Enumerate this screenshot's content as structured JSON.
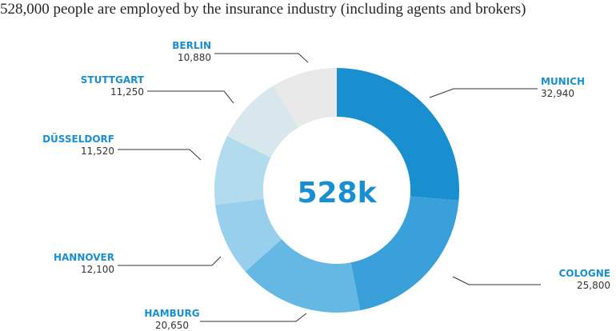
{
  "title": "528,000 people are employed by the insurance industry (including agents and brokers)",
  "center_label": "528k",
  "chart_data": {
    "type": "pie",
    "title": "528,000 people are employed by the insurance industry (including agents and brokers)",
    "categories": [
      "MUNICH",
      "COLOGNE",
      "HAMBURG",
      "HANNOVER",
      "DÜSSELDORF",
      "STUTTGART",
      "BERLIN"
    ],
    "values": [
      32940,
      25800,
      20650,
      12100,
      11520,
      11250,
      10880
    ],
    "value_labels": [
      "32,940",
      "25,800",
      "20,650",
      "12,100",
      "11,520",
      "11,250",
      "10,880"
    ],
    "colors": [
      "#1a8fd0",
      "#3aa0d9",
      "#66b8e4",
      "#98cfed",
      "#b2dbee",
      "#d8e6ed",
      "#e9e9e9"
    ],
    "donut": true,
    "center_label": "528k"
  }
}
